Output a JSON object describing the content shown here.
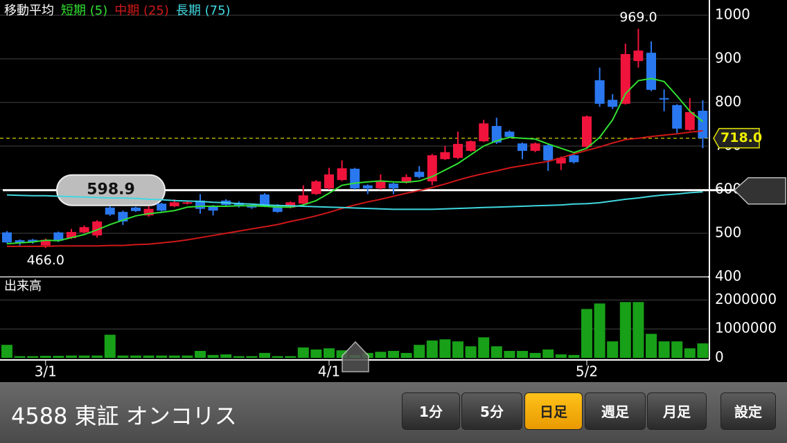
{
  "chart_data": [
    {
      "type": "candlestick",
      "legend_title": "移動平均",
      "categories": [
        null,
        null,
        null,
        "3/1",
        null,
        null,
        null,
        null,
        null,
        null,
        null,
        null,
        null,
        null,
        null,
        null,
        null,
        null,
        null,
        null,
        null,
        null,
        null,
        null,
        null,
        "4/1",
        null,
        null,
        null,
        null,
        null,
        null,
        null,
        null,
        null,
        null,
        null,
        null,
        null,
        null,
        null,
        null,
        null,
        null,
        null,
        "5/2",
        null,
        null,
        null,
        null,
        null,
        null,
        null,
        null,
        null
      ],
      "open": [
        502,
        484,
        485,
        472,
        502,
        489,
        502,
        495,
        559,
        549,
        559,
        541,
        568,
        562,
        568,
        575,
        563,
        575,
        570,
        565,
        589,
        565,
        559,
        568,
        590,
        603,
        622,
        648,
        610,
        603,
        614,
        616,
        641,
        619,
        670,
        673,
        689,
        711,
        746,
        733,
        706,
        689,
        702,
        660,
        679,
        698,
        851,
        806,
        797,
        895,
        914,
        810,
        794,
        737,
        781
      ],
      "high": [
        505,
        486,
        487,
        488,
        504,
        510,
        518,
        530,
        562,
        552,
        561,
        562,
        570,
        578,
        573,
        590,
        565,
        578,
        573,
        567,
        592,
        567,
        573,
        610,
        622,
        650,
        667,
        650,
        612,
        635,
        616,
        635,
        654,
        682,
        700,
        733,
        713,
        760,
        765,
        736,
        708,
        708,
        704,
        676,
        681,
        770,
        880,
        819,
        935,
        969,
        940,
        830,
        796,
        810,
        805
      ],
      "low": [
        477,
        472,
        476,
        466,
        480,
        487,
        500,
        490,
        540,
        519,
        549,
        538,
        550,
        560,
        566,
        545,
        541,
        562,
        559,
        556,
        560,
        547,
        557,
        566,
        588,
        600,
        620,
        600,
        590,
        600,
        590,
        614,
        626,
        610,
        668,
        670,
        687,
        709,
        705,
        719,
        670,
        686,
        643,
        645,
        660,
        696,
        790,
        785,
        795,
        880,
        826,
        780,
        730,
        735,
        695
      ],
      "close": [
        479,
        477,
        480,
        485,
        483,
        503,
        514,
        527,
        543,
        527,
        551,
        556,
        552,
        571,
        571,
        556,
        552,
        565,
        562,
        559,
        562,
        549,
        571,
        587,
        619,
        635,
        649,
        603,
        603,
        619,
        603,
        629,
        629,
        679,
        686,
        705,
        711,
        752,
        708,
        721,
        689,
        706,
        667,
        673,
        663,
        768,
        797,
        790,
        911,
        919,
        829,
        808,
        740,
        778,
        718
      ],
      "up_color": "#f0143c",
      "down_color": "#2a78f0",
      "series": [
        {
          "name": "短期 (5)",
          "color": "#30e030",
          "values": [
            476,
            478,
            480,
            484,
            483,
            490,
            497,
            508,
            520,
            530,
            540,
            545,
            548,
            552,
            560,
            562,
            562,
            562,
            563,
            563,
            562,
            560,
            560,
            565,
            575,
            592,
            610,
            615,
            618,
            620,
            618,
            617,
            620,
            630,
            645,
            660,
            680,
            700,
            712,
            720,
            718,
            716,
            705,
            695,
            685,
            695,
            720,
            760,
            820,
            850,
            855,
            848,
            815,
            780,
            756
          ]
        },
        {
          "name": "中期 (25)",
          "color": "#d01818",
          "values": [
            470,
            470,
            470,
            470,
            471,
            471,
            471,
            471,
            472,
            472,
            474,
            475,
            478,
            481,
            485,
            490,
            495,
            500,
            505,
            510,
            515,
            520,
            527,
            533,
            540,
            548,
            557,
            565,
            572,
            578,
            585,
            592,
            598,
            605,
            613,
            622,
            630,
            637,
            643,
            650,
            655,
            660,
            665,
            673,
            682,
            690,
            698,
            707,
            715,
            718,
            722,
            725,
            728,
            732,
            735
          ]
        },
        {
          "name": "長期 (75)",
          "color": "#40d8e0",
          "values": [
            588,
            587,
            586,
            586,
            585,
            584,
            583,
            582,
            581,
            581,
            580,
            578,
            577,
            575,
            574,
            573,
            571,
            570,
            568,
            567,
            565,
            564,
            563,
            562,
            561,
            560,
            559,
            558,
            557,
            556,
            555,
            555,
            555,
            555,
            556,
            557,
            558,
            559,
            560,
            561,
            562,
            563,
            564,
            565,
            567,
            568,
            570,
            574,
            578,
            581,
            585,
            588,
            590,
            593,
            595
          ]
        }
      ],
      "ylim": [
        400,
        1035
      ],
      "yticks": [
        400,
        500,
        600,
        700,
        800,
        900,
        1000
      ],
      "grid": true,
      "annotations": [
        {
          "value": 969,
          "label": "969.0"
        },
        {
          "value": 466,
          "label": "466.0"
        }
      ],
      "last_price": {
        "value": 718,
        "label": "718.0"
      },
      "trend_line": 598.9
    },
    {
      "type": "bar",
      "title": "出来高",
      "color": "#18a018",
      "values": [
        450000,
        60000,
        60000,
        70000,
        70000,
        80000,
        80000,
        80000,
        800000,
        80000,
        80000,
        80000,
        80000,
        80000,
        80000,
        240000,
        100000,
        120000,
        60000,
        60000,
        170000,
        60000,
        60000,
        360000,
        290000,
        330000,
        260000,
        100000,
        170000,
        210000,
        240000,
        170000,
        450000,
        600000,
        640000,
        570000,
        400000,
        710000,
        400000,
        240000,
        240000,
        170000,
        290000,
        120000,
        100000,
        1690000,
        1880000,
        570000,
        1930000,
        1930000,
        830000,
        570000,
        570000,
        330000,
        500000
      ],
      "ylim": [
        0,
        2800000
      ],
      "yticks": [
        0,
        1000000,
        2000000
      ],
      "grid": true
    }
  ],
  "toolbar": {
    "stock": "4588 東証 オンコリス",
    "intervals": [
      "1分",
      "5分",
      "日足",
      "週足",
      "月足"
    ],
    "active": "日足",
    "settings": "設定"
  }
}
